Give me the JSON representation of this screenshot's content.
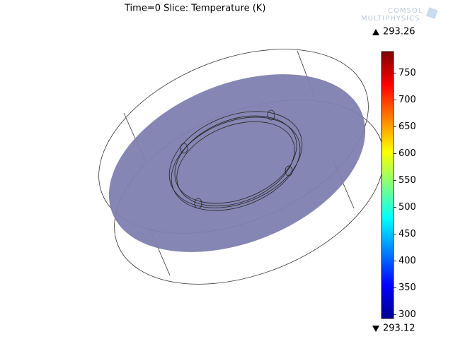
{
  "chart_data": {
    "type": "slice",
    "title": "Time=0  Slice: Temperature (K)",
    "logo": [
      "COMSOL",
      "MULTIPHYSICS"
    ],
    "max": 293.26,
    "min": 293.12,
    "ylim": [
      293,
      790
    ],
    "yticks": [
      300,
      350,
      400,
      450,
      500,
      550,
      600,
      650,
      700,
      750
    ],
    "colormap": [
      "#00008f",
      "#0000ff",
      "#0080ff",
      "#00ffff",
      "#80ff80",
      "#ffff00",
      "#ff8000",
      "#ff0000",
      "#800000"
    ],
    "slice_color": "#8080b0"
  }
}
